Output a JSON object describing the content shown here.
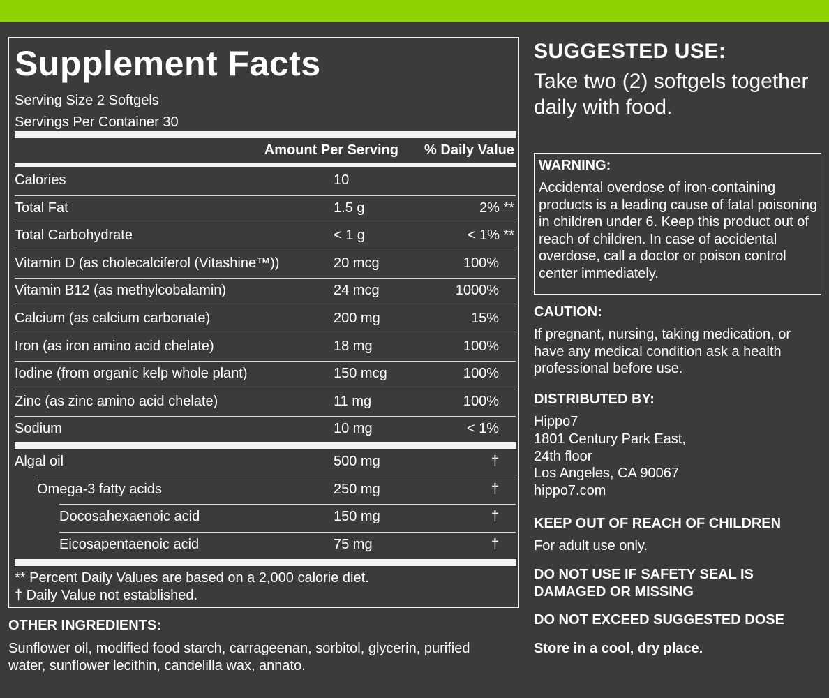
{
  "facts": {
    "title": "Supplement Facts",
    "serving_size": "Serving Size 2 Softgels",
    "servings_per_container": "Servings Per Container 30",
    "header_amount": "Amount Per Serving",
    "header_dv": "% Daily Value",
    "nutrients": [
      {
        "name": "Calories",
        "amount": "10",
        "dv": ""
      },
      {
        "name": "Total Fat",
        "amount": "1.5 g",
        "dv": "2% **"
      },
      {
        "name": "Total Carbohydrate",
        "amount": "< 1 g",
        "dv": "< 1% **"
      },
      {
        "name": "Vitamin D (as cholecalciferol (Vitashine™))",
        "amount": "20 mcg",
        "dv": "100%"
      },
      {
        "name": "Vitamin B12 (as methylcobalamin)",
        "amount": "24 mcg",
        "dv": "1000%"
      },
      {
        "name": "Calcium (as calcium carbonate)",
        "amount": "200 mg",
        "dv": "15%"
      },
      {
        "name": "Iron (as iron amino acid chelate)",
        "amount": "18 mg",
        "dv": "100%"
      },
      {
        "name": "Iodine (from organic kelp whole plant)",
        "amount": "150 mcg",
        "dv": "100%"
      },
      {
        "name": "Zinc (as zinc amino acid chelate)",
        "amount": "11 mg",
        "dv": "100%"
      },
      {
        "name": "Sodium",
        "amount": "10 mg",
        "dv": "< 1%"
      }
    ],
    "oils": [
      {
        "name": "Algal oil",
        "amount": "500 mg",
        "dv": "†"
      },
      {
        "name": "Omega-3 fatty acids",
        "amount": "250 mg",
        "dv": "†"
      },
      {
        "name": "Docosahexaenoic acid",
        "amount": "150 mg",
        "dv": "†"
      },
      {
        "name": "Eicosapentaenoic acid",
        "amount": "75 mg",
        "dv": "†"
      }
    ],
    "footnote_1": "** Percent Daily Values are based on  a 2,000 calorie diet.",
    "footnote_2": "† Daily Value not established."
  },
  "other_ingredients": {
    "heading": "OTHER INGREDIENTS:",
    "text": "Sunflower oil, modified food starch, carrageenan, sorbitol, glycerin, purified water, sunflower lecithin, candelilla wax, annato."
  },
  "suggested_use": {
    "heading": "SUGGESTED USE:",
    "text": "Take two (2) softgels together daily with food."
  },
  "warning": {
    "heading": "WARNING:",
    "text": "Accidental overdose of iron-containing products is a leading cause of fatal poisoning in children under 6. Keep this product out of reach of children. In case of accidental overdose, call a doctor or poison control center immediately."
  },
  "caution": {
    "heading": "CAUTION:",
    "text": "If pregnant, nursing, taking medication, or have any medical condition ask a health professional before use."
  },
  "distributor": {
    "heading": "DISTRIBUTED BY:",
    "name": "Hippo7",
    "address_1": "1801 Century Park East,",
    "address_2": "24th floor",
    "city": "Los Angeles, CA 90067",
    "website": "hippo7.com"
  },
  "keep_out": {
    "heading": "KEEP OUT OF REACH OF CHILDREN",
    "text": "For adult use only."
  },
  "seal_warning": "DO NOT USE IF SAFETY SEAL IS DAMAGED OR MISSING",
  "dose_warning": "DO NOT EXCEED SUGGESTED DOSE",
  "storage": "Store in a cool, dry place.",
  "colors": {
    "accent": "#8fd100",
    "background": "#3b3b3b",
    "text": "#ffffff"
  }
}
